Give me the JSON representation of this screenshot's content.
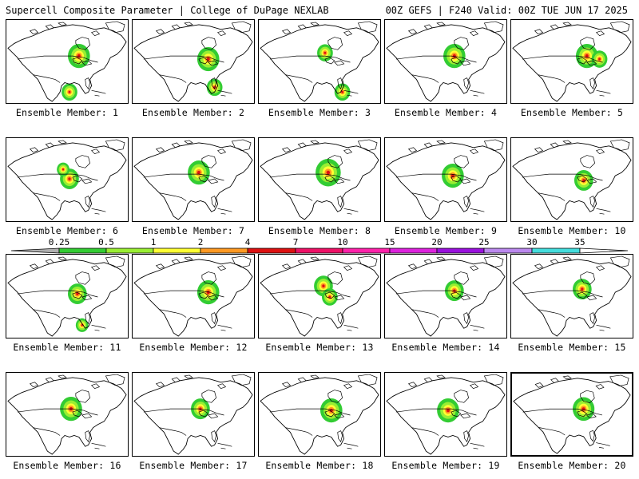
{
  "header": {
    "left_title": "Supercell Composite Parameter | College of DuPage NEXLAB",
    "right_title": "00Z GEFS | F240 Valid: 00Z TUE JUN 17 2025"
  },
  "members": [
    "Ensemble Member: 1",
    "Ensemble Member: 2",
    "Ensemble Member: 3",
    "Ensemble Member: 4",
    "Ensemble Member: 5",
    "Ensemble Member: 6",
    "Ensemble Member: 7",
    "Ensemble Member: 8",
    "Ensemble Member: 9",
    "Ensemble Member: 10",
    "Ensemble Member: 11",
    "Ensemble Member: 12",
    "Ensemble Member: 13",
    "Ensemble Member: 14",
    "Ensemble Member: 15",
    "Ensemble Member: 16",
    "Ensemble Member: 17",
    "Ensemble Member: 18",
    "Ensemble Member: 19",
    "Ensemble Member: 20"
  ],
  "colorbar": {
    "labels": [
      "0.25",
      "0.5",
      "1",
      "2",
      "4",
      "7",
      "10",
      "15",
      "20",
      "25",
      "30",
      "35"
    ],
    "colors": [
      "#b0b0b0",
      "#33cc33",
      "#99ee33",
      "#ffff33",
      "#ff9922",
      "#dd1111",
      "#ee1166",
      "#ff22aa",
      "#dd22dd",
      "#9911dd",
      "#bb88ee",
      "#44dddd",
      "#ffffff"
    ]
  }
}
